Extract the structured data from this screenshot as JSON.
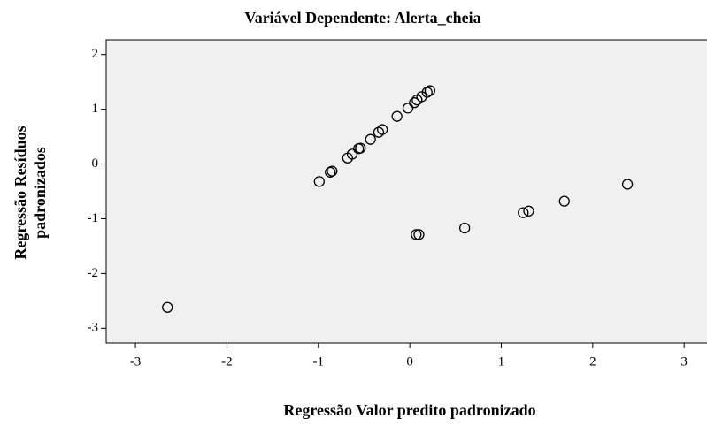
{
  "chart_data": {
    "type": "scatter",
    "title": "Variável Dependente: Alerta_cheia",
    "x_label": "Regressão Valor predito padronizado",
    "y_label": [
      "Regressão Resíduos",
      "padronizados"
    ],
    "color": "#000000",
    "background": "#f0f0f0",
    "series": [
      {
        "name": null,
        "color": "#000000",
        "x": [
          -2.65,
          -0.99,
          -0.87,
          -0.85,
          -0.68,
          -0.63,
          -0.56,
          -0.54,
          -0.43,
          -0.34,
          -0.3,
          -0.14,
          -0.02,
          0.05,
          0.08,
          0.13,
          0.19,
          0.22,
          0.07,
          0.1,
          0.6,
          1.24,
          1.3,
          1.69,
          2.38
        ],
        "values": [
          -2.62,
          -0.32,
          -0.15,
          -0.13,
          0.11,
          0.18,
          0.28,
          0.29,
          0.45,
          0.58,
          0.63,
          0.87,
          1.02,
          1.12,
          1.17,
          1.23,
          1.31,
          1.34,
          -1.29,
          -1.29,
          -1.17,
          -0.89,
          -0.86,
          -0.68,
          -0.37
        ]
      }
    ],
    "xlim": [
      -3.32,
      3.25
    ],
    "xticks": [
      -3,
      -2,
      -1,
      0,
      1,
      2,
      3
    ],
    "ylim": [
      -3.27,
      2.27
    ],
    "yticks": [
      -3,
      -2,
      -1,
      0,
      1,
      2
    ]
  }
}
